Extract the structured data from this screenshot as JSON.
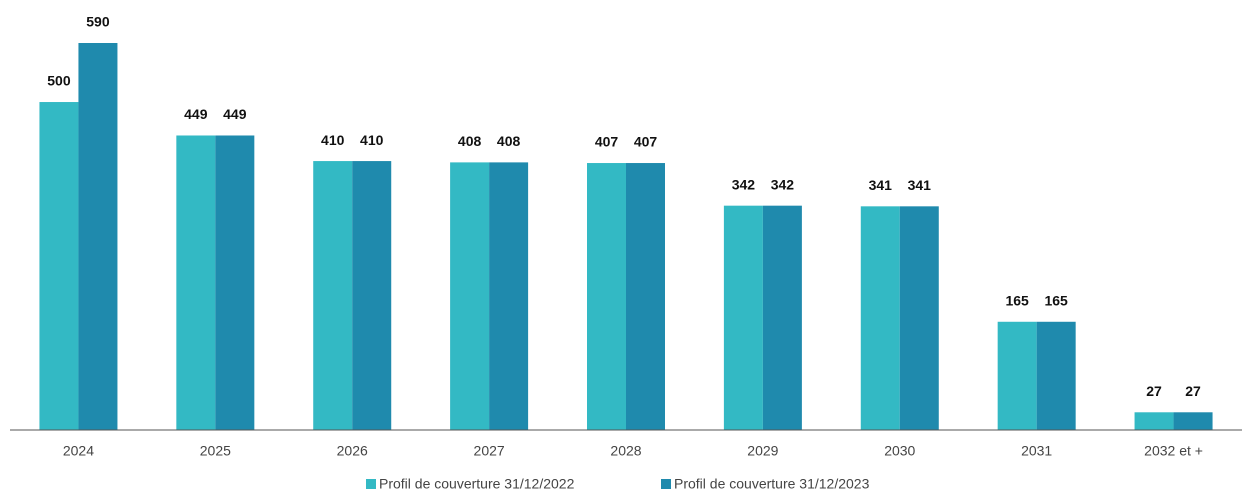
{
  "chart_data": {
    "type": "bar",
    "categories": [
      "2024",
      "2025",
      "2026",
      "2027",
      "2028",
      "2029",
      "2030",
      "2031",
      "2032 et +"
    ],
    "series": [
      {
        "name": "Profil de couverture 31/12/2022",
        "color": "#33b9c4",
        "values": [
          500,
          449,
          410,
          408,
          407,
          342,
          341,
          165,
          27
        ]
      },
      {
        "name": "Profil de couverture 31/12/2023",
        "color": "#1f8aad",
        "values": [
          590,
          449,
          410,
          408,
          407,
          342,
          341,
          165,
          27
        ]
      }
    ]
  }
}
